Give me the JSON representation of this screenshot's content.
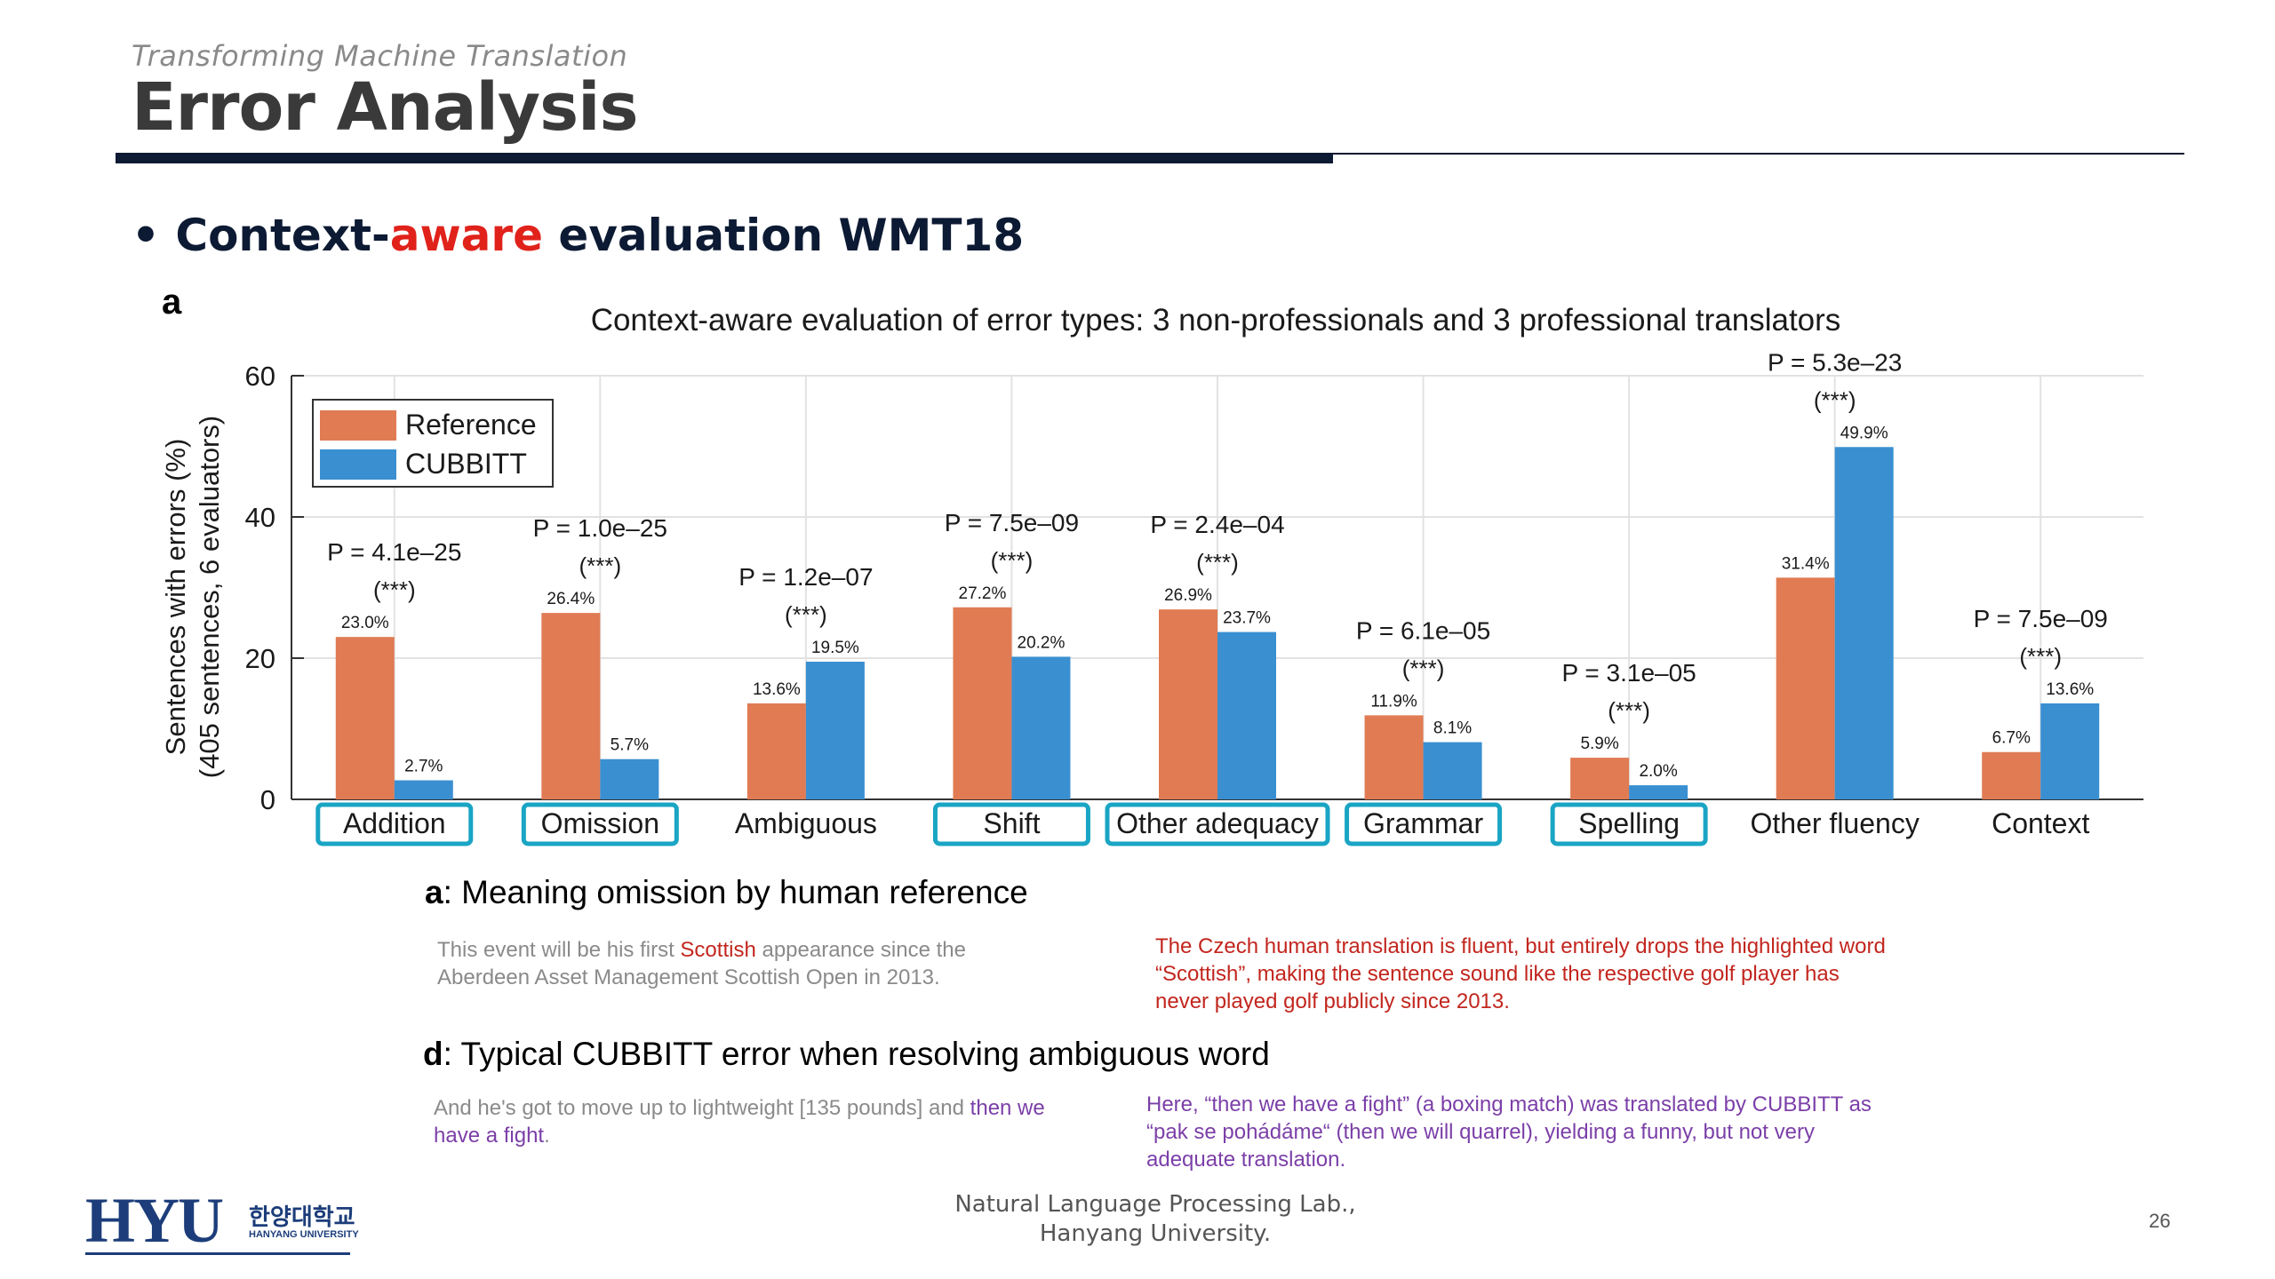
{
  "header": {
    "subtitle": "Transforming Machine Translation",
    "title": "Error Analysis"
  },
  "bullet": {
    "marker": "•",
    "part1": "Context-",
    "part2": "aware",
    "part3": " evaluation WMT18"
  },
  "panel_letter": "a",
  "chart_data": {
    "type": "bar",
    "title": "Context-aware evaluation of error types: 3 non-professionals and 3 professional translators",
    "ylabel_line1": "Sentences with errors (%)",
    "ylabel_line2": "(405 sentences, 6 evaluators)",
    "ylim": [
      0,
      60
    ],
    "yticks": [
      0,
      20,
      40,
      60
    ],
    "grid": true,
    "legend_position": "top-left",
    "categories": [
      "Addition",
      "Omission",
      "Ambiguous",
      "Shift",
      "Other adequacy",
      "Grammar",
      "Spelling",
      "Other fluency",
      "Context"
    ],
    "highlighted": [
      true,
      true,
      false,
      true,
      true,
      true,
      true,
      false,
      false
    ],
    "series": [
      {
        "name": "Reference",
        "color": "#e07b53",
        "values": [
          23.0,
          26.4,
          13.6,
          27.2,
          26.9,
          11.9,
          5.9,
          31.4,
          6.7
        ],
        "labels": [
          "23.0%",
          "26.4%",
          "13.6%",
          "27.2%",
          "26.9%",
          "11.9%",
          "5.9%",
          "31.4%",
          "6.7%"
        ]
      },
      {
        "name": "CUBBITT",
        "color": "#3a8fd1",
        "values": [
          2.7,
          5.7,
          19.5,
          20.2,
          23.7,
          8.1,
          2.0,
          49.9,
          13.6
        ],
        "labels": [
          "2.7%",
          "5.7%",
          "19.5%",
          "20.2%",
          "23.7%",
          "8.1%",
          "2.0%",
          "49.9%",
          "13.6%"
        ]
      }
    ],
    "pvalues": [
      "P = 4.1e–25",
      "P = 1.0e–25",
      "P = 1.2e–07",
      "P = 7.5e–09",
      "P = 2.4e–04",
      "P = 6.1e–05",
      "P = 3.1e–05",
      "P = 5.3e–23",
      "P = 7.5e–09"
    ],
    "significance": [
      "(***)",
      "(***)",
      "(***)",
      "(***)",
      "(***)",
      "(***)",
      "(***)",
      "(***)",
      "(***)"
    ],
    "highlight_color": "#1aa5c4"
  },
  "caption_a": {
    "letter": "a",
    "text": ": Meaning omission by human reference",
    "example_pre": "This event will be his first ",
    "example_highlight": "Scottish",
    "example_post": " appearance since the Aberdeen Asset Management Scottish Open in 2013.",
    "note": "The Czech human translation is fluent, but entirely drops the highlighted word “Scottish”, making the sentence sound like the respective golf player has never played golf publicly since 2013."
  },
  "caption_d": {
    "letter": "d",
    "text": ": Typical CUBBITT error when resolving ambiguous word",
    "example_pre": "And he's got to move up to lightweight [135 pounds] and ",
    "example_highlight": "then we have a fight",
    "example_post": ".",
    "note": "Here, “then we have a fight” (a boxing match) was translated by CUBBITT as “pak se pohádáme“ (then we will quarrel), yielding a funny, but not very adequate translation."
  },
  "footer": {
    "line1": "Natural Language Processing Lab.,",
    "line2": "Hanyang University.",
    "page": "26"
  },
  "logo": {
    "abbr": "HYU",
    "korean": "한양대학교",
    "english": "HANYANG UNIVERSITY"
  }
}
